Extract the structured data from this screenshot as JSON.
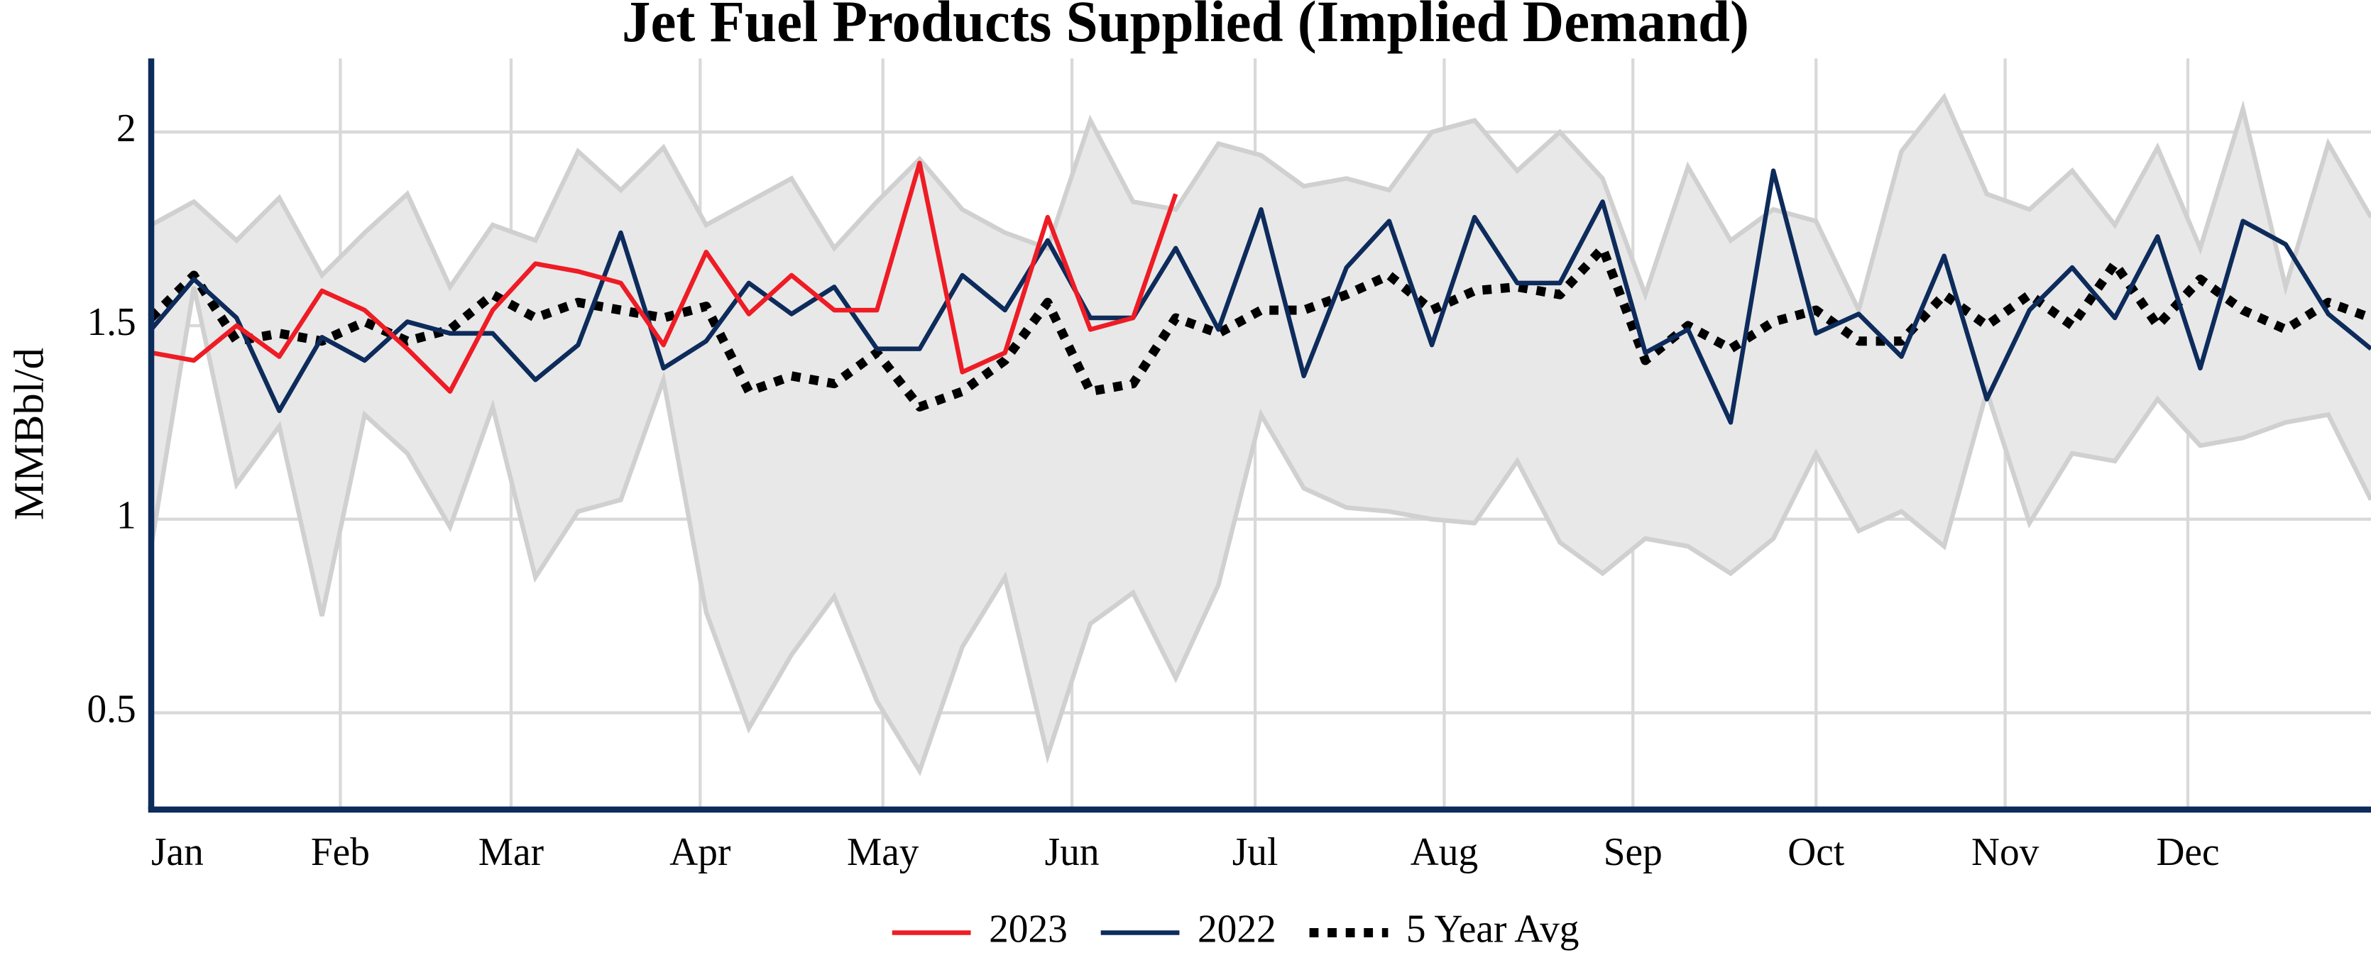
{
  "chart_data": {
    "type": "line",
    "title": "Jet Fuel Products Supplied (Implied Demand)",
    "y_label": "MMBbl/d",
    "x": [
      0,
      1,
      2,
      3,
      4,
      5,
      6,
      7,
      8,
      9,
      10,
      11,
      12,
      13,
      14,
      15,
      16,
      17,
      18,
      19,
      20,
      21,
      22,
      23,
      24,
      25,
      26,
      27,
      28,
      29,
      30,
      31,
      32,
      33,
      34,
      35,
      36,
      37,
      38,
      39,
      40,
      41,
      42,
      43,
      44,
      45,
      46,
      47,
      48,
      49,
      50,
      51,
      52
    ],
    "xlim": [
      0,
      52
    ],
    "xticks": [
      {
        "value": 0,
        "label": "Jan"
      },
      {
        "value": 4.43,
        "label": "Feb"
      },
      {
        "value": 8.43,
        "label": "Mar"
      },
      {
        "value": 12.86,
        "label": "Apr"
      },
      {
        "value": 17.14,
        "label": "May"
      },
      {
        "value": 21.57,
        "label": "Jun"
      },
      {
        "value": 25.86,
        "label": "Jul"
      },
      {
        "value": 30.29,
        "label": "Aug"
      },
      {
        "value": 34.71,
        "label": "Sep"
      },
      {
        "value": 39,
        "label": "Oct"
      },
      {
        "value": 43.43,
        "label": "Nov"
      },
      {
        "value": 47.71,
        "label": "Dec"
      }
    ],
    "ylim": [
      0.25,
      2.19
    ],
    "yticks": [
      0.5,
      1,
      1.5,
      2
    ],
    "grid": true,
    "axis_color": "#0d2b5b",
    "range": {
      "color": "#e8e8e8",
      "edge_color": "#d0d0d0",
      "max": [
        1.76,
        1.82,
        1.72,
        1.83,
        1.63,
        1.74,
        1.84,
        1.6,
        1.76,
        1.72,
        1.95,
        1.85,
        1.96,
        1.76,
        1.82,
        1.88,
        1.7,
        1.82,
        1.93,
        1.8,
        1.74,
        1.7,
        2.03,
        1.82,
        1.8,
        1.97,
        1.94,
        1.86,
        1.88,
        1.85,
        2.0,
        2.03,
        1.9,
        2.0,
        1.88,
        1.58,
        1.91,
        1.72,
        1.8,
        1.77,
        1.54,
        1.95,
        2.09,
        1.84,
        1.8,
        1.9,
        1.76,
        1.96,
        1.7,
        2.06,
        1.6,
        1.97,
        1.78
      ],
      "min": [
        0.93,
        1.6,
        1.09,
        1.24,
        0.75,
        1.27,
        1.17,
        0.98,
        1.29,
        0.85,
        1.02,
        1.05,
        1.36,
        0.76,
        0.46,
        0.65,
        0.8,
        0.53,
        0.35,
        0.67,
        0.85,
        0.39,
        0.73,
        0.81,
        0.59,
        0.83,
        1.27,
        1.08,
        1.03,
        1.02,
        1.0,
        0.99,
        1.15,
        0.94,
        0.86,
        0.95,
        0.93,
        0.86,
        0.95,
        1.17,
        0.97,
        1.02,
        0.93,
        1.33,
        0.99,
        1.17,
        1.15,
        1.31,
        1.19,
        1.21,
        1.25,
        1.27,
        1.05
      ]
    },
    "series": [
      {
        "name": "2023",
        "color": "#ee1c25",
        "dash": "solid",
        "values": [
          1.43,
          1.41,
          1.5,
          1.42,
          1.59,
          1.54,
          1.44,
          1.33,
          1.54,
          1.66,
          1.64,
          1.61,
          1.45,
          1.69,
          1.53,
          1.63,
          1.54,
          1.54,
          1.92,
          1.38,
          1.43,
          1.78,
          1.49,
          1.52,
          1.84,
          null,
          null,
          null,
          null,
          null,
          null,
          null,
          null,
          null,
          null,
          null,
          null,
          null,
          null,
          null,
          null,
          null,
          null,
          null,
          null,
          null,
          null,
          null,
          null,
          null,
          null,
          null,
          null
        ]
      },
      {
        "name": "2022",
        "color": "#0d2b5b",
        "dash": "solid",
        "values": [
          1.49,
          1.62,
          1.52,
          1.28,
          1.47,
          1.41,
          1.51,
          1.48,
          1.48,
          1.36,
          1.45,
          1.74,
          1.39,
          1.46,
          1.61,
          1.53,
          1.6,
          1.44,
          1.44,
          1.63,
          1.54,
          1.72,
          1.52,
          1.52,
          1.7,
          1.49,
          1.8,
          1.37,
          1.65,
          1.77,
          1.45,
          1.78,
          1.61,
          1.61,
          1.82,
          1.43,
          1.49,
          1.25,
          1.9,
          1.48,
          1.53,
          1.42,
          1.68,
          1.31,
          1.54,
          1.65,
          1.52,
          1.73,
          1.39,
          1.77,
          1.71,
          1.53,
          1.44
        ]
      },
      {
        "name": "5 Year Avg",
        "color": "#000000",
        "dash": "dotted",
        "values": [
          1.52,
          1.63,
          1.46,
          1.48,
          1.46,
          1.51,
          1.46,
          1.49,
          1.58,
          1.52,
          1.56,
          1.54,
          1.52,
          1.55,
          1.33,
          1.37,
          1.35,
          1.43,
          1.29,
          1.33,
          1.41,
          1.56,
          1.33,
          1.35,
          1.52,
          1.48,
          1.54,
          1.54,
          1.58,
          1.63,
          1.54,
          1.59,
          1.6,
          1.58,
          1.7,
          1.41,
          1.5,
          1.44,
          1.51,
          1.54,
          1.46,
          1.46,
          1.58,
          1.5,
          1.58,
          1.5,
          1.66,
          1.5,
          1.62,
          1.54,
          1.49,
          1.56,
          1.52
        ]
      }
    ]
  }
}
